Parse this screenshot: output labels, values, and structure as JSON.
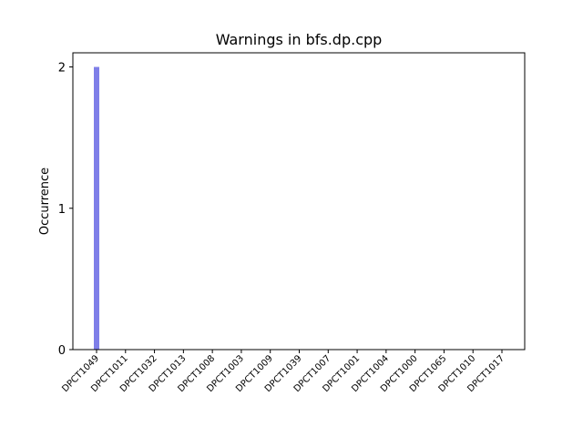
{
  "chart_data": {
    "type": "bar",
    "title": "Warnings in bfs.dp.cpp",
    "xlabel": "",
    "ylabel": "Occurrence",
    "categories": [
      "DPCT1049",
      "DPCT1011",
      "DPCT1032",
      "DPCT1013",
      "DPCT1008",
      "DPCT1003",
      "DPCT1009",
      "DPCT1039",
      "DPCT1007",
      "DPCT1001",
      "DPCT1004",
      "DPCT1000",
      "DPCT1065",
      "DPCT1010",
      "DPCT1017"
    ],
    "values": [
      2,
      0,
      0,
      0,
      0,
      0,
      0,
      0,
      0,
      0,
      0,
      0,
      0,
      0,
      0
    ],
    "ylim": [
      0,
      2.1
    ],
    "yticks": [
      0,
      1,
      2
    ],
    "grid": false,
    "colors": {
      "bar": "#7f7fe8",
      "axis": "#000000"
    }
  }
}
